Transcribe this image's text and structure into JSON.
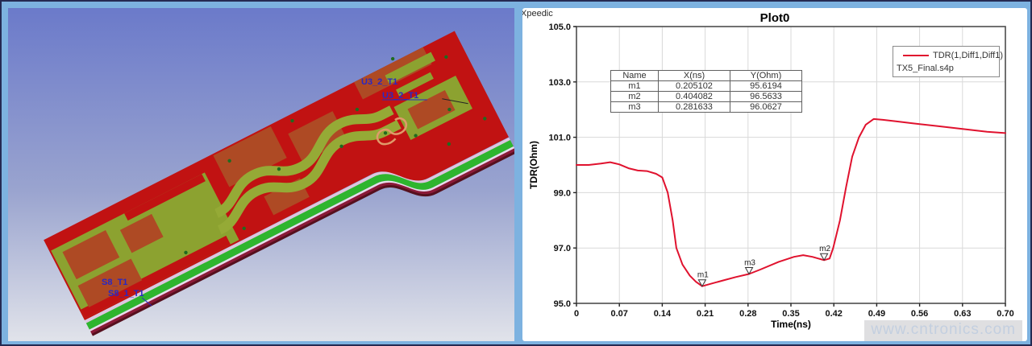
{
  "left_panel": {
    "labels": [
      "U3_2_T1",
      "U3_2_T1",
      "S8_T1",
      "S8_1_T1"
    ]
  },
  "right_panel": {
    "brand": "Xpeedic",
    "title": "Plot0",
    "xlabel": "Time(ns)",
    "ylabel": "TDR(Ohm)",
    "legend": {
      "series_label": "TDR(1,Diff1,Diff1)",
      "file_label": "TX5_Final.s4p"
    },
    "marker_table": {
      "headers": [
        "Name",
        "X(ns)",
        "Y(Ohm)"
      ],
      "rows": [
        [
          "m1",
          "0.205102",
          "95.6194"
        ],
        [
          "m2",
          "0.404082",
          "96.5633"
        ],
        [
          "m3",
          "0.281633",
          "96.0627"
        ]
      ]
    },
    "watermark": "www.cntronics.com"
  },
  "chart_data": {
    "type": "line",
    "title": "Plot0",
    "xlabel": "Time(ns)",
    "ylabel": "TDR(Ohm)",
    "xlim": [
      0,
      0.7
    ],
    "ylim": [
      95.0,
      105.0
    ],
    "grid": true,
    "legend_position": "top-right",
    "x_ticks": [
      0,
      0.07,
      0.14,
      0.21,
      0.28,
      0.35,
      0.42,
      0.49,
      0.56,
      0.63,
      0.7
    ],
    "x_tick_labels": [
      "0",
      "0.07",
      "0.14",
      "0.21",
      "0.28",
      "0.35",
      "0.42",
      "0.49",
      "0.56",
      "0.63",
      "0.70"
    ],
    "y_ticks": [
      95,
      97,
      99,
      101,
      103,
      105
    ],
    "y_tick_labels": [
      "95.0",
      "97.0",
      "99.0",
      "101.0",
      "103.0",
      "105.0"
    ],
    "series": [
      {
        "name": "TDR(1,Diff1,Diff1)",
        "file": "TX5_Final.s4p",
        "color": "#e0122e",
        "x": [
          0,
          0.02,
          0.04,
          0.055,
          0.07,
          0.085,
          0.1,
          0.115,
          0.13,
          0.14,
          0.149,
          0.157,
          0.163,
          0.173,
          0.185,
          0.195,
          0.2051,
          0.218,
          0.24,
          0.26,
          0.2816,
          0.3,
          0.33,
          0.355,
          0.37,
          0.385,
          0.4041,
          0.413,
          0.419,
          0.43,
          0.44,
          0.45,
          0.461,
          0.472,
          0.485,
          0.5,
          0.52,
          0.55,
          0.59,
          0.63,
          0.67,
          0.7
        ],
        "y": [
          100.0,
          100.0,
          100.05,
          100.1,
          100.02,
          99.88,
          99.8,
          99.78,
          99.68,
          99.55,
          99.0,
          98.0,
          97.0,
          96.4,
          96.0,
          95.78,
          95.62,
          95.7,
          95.83,
          95.95,
          96.06,
          96.22,
          96.5,
          96.68,
          96.74,
          96.68,
          96.56,
          96.62,
          97.0,
          98.0,
          99.2,
          100.3,
          101.0,
          101.45,
          101.66,
          101.63,
          101.58,
          101.5,
          101.4,
          101.3,
          101.2,
          101.15
        ]
      }
    ],
    "markers": [
      {
        "name": "m1",
        "x": 0.205102,
        "y": 95.6194
      },
      {
        "name": "m2",
        "x": 0.404082,
        "y": 96.5633
      },
      {
        "name": "m3",
        "x": 0.281633,
        "y": 96.0627
      }
    ]
  }
}
